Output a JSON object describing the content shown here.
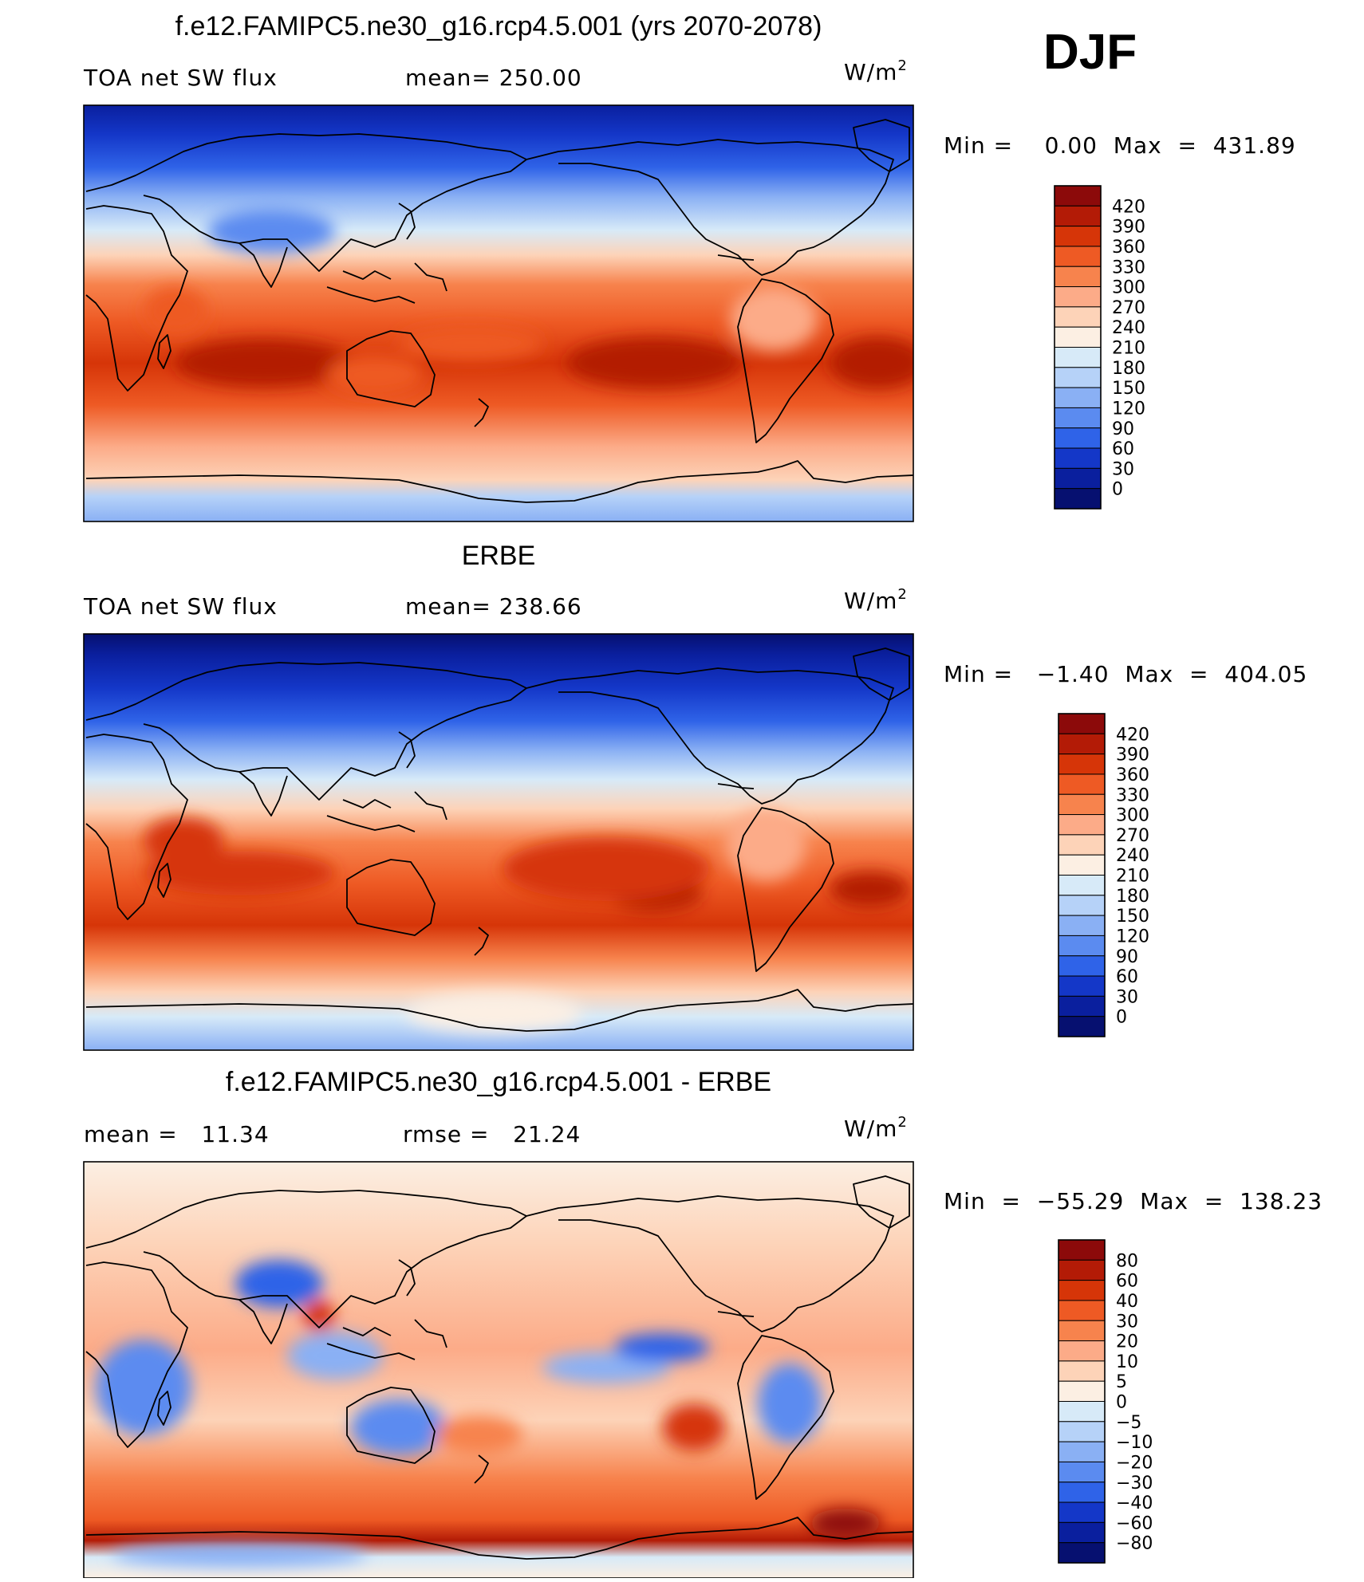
{
  "season_label": "DJF",
  "chart_data": [
    {
      "type": "heatmap",
      "title": "f.e12.FAMIPC5.ne30_g16.rcp4.5.001 (yrs 2070-2078)",
      "left_label": "TOA net SW flux",
      "center_label": "mean= 250.00",
      "units_label": "W/m",
      "units_exponent": "2",
      "mean": 250.0,
      "min_max_label": "Min =    0.00  Max  =  431.89",
      "min": 0.0,
      "max": 431.89,
      "colorbar_levels": [
        "420",
        "390",
        "360",
        "330",
        "300",
        "270",
        "240",
        "210",
        "180",
        "150",
        "120",
        "90",
        "60",
        "30",
        "0"
      ],
      "colorbar_colors": [
        "#8c0a0a",
        "#b31b06",
        "#d63508",
        "#ee5a24",
        "#f7834d",
        "#fcab88",
        "#fdd3b8",
        "#fcefe3",
        "#d7eaf8",
        "#b6d2f8",
        "#8ab0f4",
        "#5b8bf0",
        "#2f63e8",
        "#1437c8",
        "#0a1f9e",
        "#061070"
      ]
    },
    {
      "type": "heatmap",
      "title": "ERBE",
      "left_label": "TOA net SW flux",
      "center_label": "mean= 238.66",
      "units_label": "W/m",
      "units_exponent": "2",
      "mean": 238.66,
      "min_max_label": "Min =   −1.40  Max  =  404.05",
      "min": -1.4,
      "max": 404.05,
      "colorbar_levels": [
        "420",
        "390",
        "360",
        "330",
        "300",
        "270",
        "240",
        "210",
        "180",
        "150",
        "120",
        "90",
        "60",
        "30",
        "0"
      ],
      "colorbar_colors": [
        "#8c0a0a",
        "#b31b06",
        "#d63508",
        "#ee5a24",
        "#f7834d",
        "#fcab88",
        "#fdd3b8",
        "#fcefe3",
        "#d7eaf8",
        "#b6d2f8",
        "#8ab0f4",
        "#5b8bf0",
        "#2f63e8",
        "#1437c8",
        "#0a1f9e",
        "#061070"
      ]
    },
    {
      "type": "heatmap",
      "title": "f.e12.FAMIPC5.ne30_g16.rcp4.5.001 - ERBE",
      "left_label": "mean =   11.34",
      "center_label": "rmse =   21.24",
      "units_label": "W/m",
      "units_exponent": "2",
      "mean": 11.34,
      "rmse": 21.24,
      "min_max_label": "Min  =  −55.29  Max  =  138.23",
      "min": -55.29,
      "max": 138.23,
      "colorbar_levels": [
        "80",
        "60",
        "40",
        "30",
        "20",
        "10",
        "5",
        "0",
        "−5",
        "−10",
        "−20",
        "−30",
        "−40",
        "−60",
        "−80"
      ],
      "colorbar_colors": [
        "#8c0a0a",
        "#b31b06",
        "#d63508",
        "#ee5a24",
        "#f7834d",
        "#fcab88",
        "#fdd3b8",
        "#fcefe3",
        "#d7eaf8",
        "#b6d2f8",
        "#8ab0f4",
        "#5b8bf0",
        "#2f63e8",
        "#1437c8",
        "#0a1f9e",
        "#061070"
      ]
    }
  ]
}
